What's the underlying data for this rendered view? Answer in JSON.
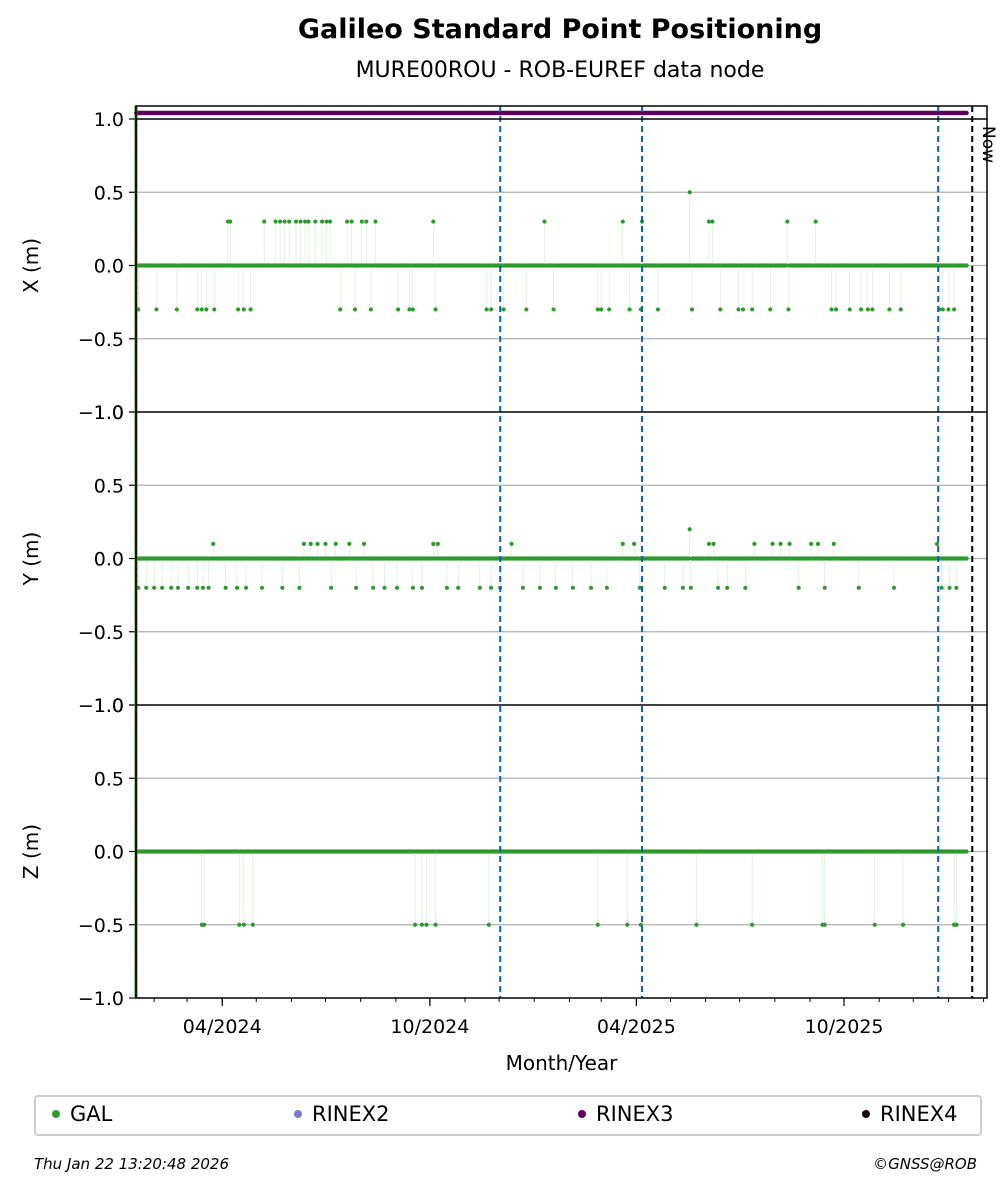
{
  "header": {
    "title": "Galileo Standard Point Positioning",
    "subtitle": "MURE00ROU - ROB-EUREF data node"
  },
  "footer": {
    "timestamp": "Thu Jan 22 13:20:48 2026",
    "copyright": "©GNSS@ROB"
  },
  "legend": [
    {
      "label": "GAL",
      "color": "#2e9a2e"
    },
    {
      "label": "RINEX2",
      "color": "#7b7bc8"
    },
    {
      "label": "RINEX3",
      "color": "#5e005e"
    },
    {
      "label": "RINEX4",
      "color": "#1a0010"
    }
  ],
  "chart_data": {
    "type": "scatter",
    "xlabel": "Month/Year",
    "x_ticks": [
      "04/2024",
      "10/2024",
      "04/2025",
      "10/2025"
    ],
    "now_label": "Now",
    "ylim": [
      -1.0,
      1.0
    ],
    "y_ticks": [
      "1.0",
      "0.5",
      "0.0",
      "−0.5",
      "−1.0"
    ],
    "grid": true,
    "x_range": [
      "2024-01-16",
      "2026-02-04"
    ],
    "vertical_markers": {
      "red_line": "2024-01-16",
      "blue_dashed": [
        "2024-12-02",
        "2025-04-06",
        "2025-12-23"
      ],
      "now": "2026-01-22"
    },
    "rinex3_band": {
      "start": "2024-01-16",
      "end": "2026-01-17"
    },
    "gal_series_range": {
      "start": "2024-01-17",
      "end": "2026-01-17"
    },
    "panels": [
      {
        "ylabel": "X (m)",
        "baseline": 0.0,
        "outliers": [
          {
            "date": "2024-01-18",
            "value": -0.3
          },
          {
            "date": "2024-02-03",
            "value": -0.3
          },
          {
            "date": "2024-02-21",
            "value": -0.3
          },
          {
            "date": "2024-03-10",
            "value": -0.3
          },
          {
            "date": "2024-03-14",
            "value": -0.3
          },
          {
            "date": "2024-03-18",
            "value": -0.3
          },
          {
            "date": "2024-03-25",
            "value": -0.3
          },
          {
            "date": "2024-04-06",
            "value": 0.3
          },
          {
            "date": "2024-04-08",
            "value": 0.3
          },
          {
            "date": "2024-04-15",
            "value": -0.3
          },
          {
            "date": "2024-04-20",
            "value": -0.3
          },
          {
            "date": "2024-04-26",
            "value": -0.3
          },
          {
            "date": "2024-05-08",
            "value": 0.3
          },
          {
            "date": "2024-05-18",
            "value": 0.3
          },
          {
            "date": "2024-05-22",
            "value": 0.3
          },
          {
            "date": "2024-05-26",
            "value": 0.3
          },
          {
            "date": "2024-05-30",
            "value": 0.3
          },
          {
            "date": "2024-06-05",
            "value": 0.3
          },
          {
            "date": "2024-06-09",
            "value": 0.3
          },
          {
            "date": "2024-06-13",
            "value": 0.3
          },
          {
            "date": "2024-06-16",
            "value": 0.3
          },
          {
            "date": "2024-06-22",
            "value": 0.3
          },
          {
            "date": "2024-06-28",
            "value": 0.3
          },
          {
            "date": "2024-07-02",
            "value": 0.3
          },
          {
            "date": "2024-07-05",
            "value": 0.3
          },
          {
            "date": "2024-07-14",
            "value": -0.3
          },
          {
            "date": "2024-07-20",
            "value": 0.3
          },
          {
            "date": "2024-07-24",
            "value": 0.3
          },
          {
            "date": "2024-07-27",
            "value": -0.3
          },
          {
            "date": "2024-08-02",
            "value": 0.3
          },
          {
            "date": "2024-08-06",
            "value": 0.3
          },
          {
            "date": "2024-08-10",
            "value": -0.3
          },
          {
            "date": "2024-08-14",
            "value": 0.3
          },
          {
            "date": "2024-09-03",
            "value": -0.3
          },
          {
            "date": "2024-09-13",
            "value": -0.3
          },
          {
            "date": "2024-09-16",
            "value": -0.3
          },
          {
            "date": "2024-10-04",
            "value": 0.3
          },
          {
            "date": "2024-10-06",
            "value": -0.3
          },
          {
            "date": "2024-11-20",
            "value": -0.3
          },
          {
            "date": "2024-11-24",
            "value": -0.3
          },
          {
            "date": "2024-12-05",
            "value": -0.3
          },
          {
            "date": "2024-12-25",
            "value": -0.3
          },
          {
            "date": "2025-01-10",
            "value": 0.3
          },
          {
            "date": "2025-01-18",
            "value": -0.3
          },
          {
            "date": "2025-02-26",
            "value": -0.3
          },
          {
            "date": "2025-03-01",
            "value": -0.3
          },
          {
            "date": "2025-03-08",
            "value": -0.3
          },
          {
            "date": "2025-03-20",
            "value": 0.3
          },
          {
            "date": "2025-03-26",
            "value": -0.3
          },
          {
            "date": "2025-04-06",
            "value": 0.3
          },
          {
            "date": "2025-04-05",
            "value": -0.3
          },
          {
            "date": "2025-04-20",
            "value": -0.3
          },
          {
            "date": "2025-05-18",
            "value": 0.5
          },
          {
            "date": "2025-05-20",
            "value": -0.3
          },
          {
            "date": "2025-06-04",
            "value": 0.3
          },
          {
            "date": "2025-06-07",
            "value": 0.3
          },
          {
            "date": "2025-06-14",
            "value": -0.3
          },
          {
            "date": "2025-06-30",
            "value": -0.3
          },
          {
            "date": "2025-07-04",
            "value": -0.3
          },
          {
            "date": "2025-07-12",
            "value": -0.3
          },
          {
            "date": "2025-07-28",
            "value": -0.3
          },
          {
            "date": "2025-08-12",
            "value": 0.3
          },
          {
            "date": "2025-08-13",
            "value": -0.3
          },
          {
            "date": "2025-09-06",
            "value": 0.3
          },
          {
            "date": "2025-09-20",
            "value": -0.3
          },
          {
            "date": "2025-09-24",
            "value": -0.3
          },
          {
            "date": "2025-10-06",
            "value": -0.3
          },
          {
            "date": "2025-10-16",
            "value": -0.3
          },
          {
            "date": "2025-10-22",
            "value": -0.3
          },
          {
            "date": "2025-10-26",
            "value": -0.3
          },
          {
            "date": "2025-11-10",
            "value": -0.3
          },
          {
            "date": "2025-11-20",
            "value": -0.3
          },
          {
            "date": "2025-12-24",
            "value": -0.3
          },
          {
            "date": "2025-12-27",
            "value": -0.3
          },
          {
            "date": "2026-01-01",
            "value": -0.3
          },
          {
            "date": "2026-01-06",
            "value": -0.3
          }
        ]
      },
      {
        "ylabel": "Y (m)",
        "baseline": 0.0,
        "outliers": [
          {
            "date": "2024-01-18",
            "value": -0.2
          },
          {
            "date": "2024-01-25",
            "value": -0.2
          },
          {
            "date": "2024-02-01",
            "value": -0.2
          },
          {
            "date": "2024-02-08",
            "value": -0.2
          },
          {
            "date": "2024-02-16",
            "value": -0.2
          },
          {
            "date": "2024-02-22",
            "value": -0.2
          },
          {
            "date": "2024-03-02",
            "value": -0.2
          },
          {
            "date": "2024-03-10",
            "value": -0.2
          },
          {
            "date": "2024-03-15",
            "value": -0.2
          },
          {
            "date": "2024-03-20",
            "value": -0.2
          },
          {
            "date": "2024-03-24",
            "value": 0.1
          },
          {
            "date": "2024-04-04",
            "value": -0.2
          },
          {
            "date": "2024-04-14",
            "value": -0.2
          },
          {
            "date": "2024-04-22",
            "value": -0.2
          },
          {
            "date": "2024-05-06",
            "value": -0.2
          },
          {
            "date": "2024-05-24",
            "value": -0.2
          },
          {
            "date": "2024-06-08",
            "value": -0.2
          },
          {
            "date": "2024-06-12",
            "value": 0.1
          },
          {
            "date": "2024-06-18",
            "value": 0.1
          },
          {
            "date": "2024-06-24",
            "value": 0.1
          },
          {
            "date": "2024-07-01",
            "value": 0.1
          },
          {
            "date": "2024-07-06",
            "value": -0.2
          },
          {
            "date": "2024-07-10",
            "value": 0.1
          },
          {
            "date": "2024-07-22",
            "value": 0.1
          },
          {
            "date": "2024-07-28",
            "value": -0.2
          },
          {
            "date": "2024-08-04",
            "value": 0.1
          },
          {
            "date": "2024-08-12",
            "value": -0.2
          },
          {
            "date": "2024-08-22",
            "value": -0.2
          },
          {
            "date": "2024-09-02",
            "value": -0.2
          },
          {
            "date": "2024-09-16",
            "value": -0.2
          },
          {
            "date": "2024-09-24",
            "value": -0.2
          },
          {
            "date": "2024-10-04",
            "value": 0.1
          },
          {
            "date": "2024-10-08",
            "value": 0.1
          },
          {
            "date": "2024-10-16",
            "value": -0.2
          },
          {
            "date": "2024-10-26",
            "value": -0.2
          },
          {
            "date": "2024-11-14",
            "value": -0.2
          },
          {
            "date": "2024-11-24",
            "value": -0.2
          },
          {
            "date": "2024-12-02",
            "value": -0.2
          },
          {
            "date": "2024-12-12",
            "value": 0.1
          },
          {
            "date": "2024-12-22",
            "value": -0.2
          },
          {
            "date": "2025-01-06",
            "value": -0.2
          },
          {
            "date": "2025-01-20",
            "value": -0.2
          },
          {
            "date": "2025-02-04",
            "value": -0.2
          },
          {
            "date": "2025-02-20",
            "value": -0.2
          },
          {
            "date": "2025-03-06",
            "value": -0.2
          },
          {
            "date": "2025-03-20",
            "value": 0.1
          },
          {
            "date": "2025-03-30",
            "value": 0.1
          },
          {
            "date": "2025-04-04",
            "value": -0.2
          },
          {
            "date": "2025-04-26",
            "value": -0.2
          },
          {
            "date": "2025-05-12",
            "value": -0.2
          },
          {
            "date": "2025-05-18",
            "value": 0.2
          },
          {
            "date": "2025-05-19",
            "value": -0.2
          },
          {
            "date": "2025-06-04",
            "value": 0.1
          },
          {
            "date": "2025-06-08",
            "value": 0.1
          },
          {
            "date": "2025-06-12",
            "value": -0.2
          },
          {
            "date": "2025-06-20",
            "value": -0.2
          },
          {
            "date": "2025-07-06",
            "value": -0.2
          },
          {
            "date": "2025-07-14",
            "value": 0.1
          },
          {
            "date": "2025-07-30",
            "value": 0.1
          },
          {
            "date": "2025-08-06",
            "value": 0.1
          },
          {
            "date": "2025-08-14",
            "value": 0.1
          },
          {
            "date": "2025-08-22",
            "value": -0.2
          },
          {
            "date": "2025-09-02",
            "value": 0.1
          },
          {
            "date": "2025-09-08",
            "value": 0.1
          },
          {
            "date": "2025-09-14",
            "value": -0.2
          },
          {
            "date": "2025-09-22",
            "value": 0.1
          },
          {
            "date": "2025-10-14",
            "value": -0.2
          },
          {
            "date": "2025-11-14",
            "value": -0.2
          },
          {
            "date": "2025-12-22",
            "value": 0.1
          },
          {
            "date": "2025-12-26",
            "value": -0.2
          },
          {
            "date": "2026-01-02",
            "value": -0.2
          },
          {
            "date": "2026-01-08",
            "value": -0.2
          }
        ]
      },
      {
        "ylabel": "Z (m)",
        "baseline": 0.0,
        "outliers": [
          {
            "date": "2024-03-14",
            "value": -0.5
          },
          {
            "date": "2024-03-16",
            "value": -0.5
          },
          {
            "date": "2024-04-16",
            "value": -0.5
          },
          {
            "date": "2024-04-20",
            "value": -0.5
          },
          {
            "date": "2024-04-28",
            "value": -0.5
          },
          {
            "date": "2024-09-18",
            "value": -0.5
          },
          {
            "date": "2024-09-24",
            "value": -0.5
          },
          {
            "date": "2024-09-28",
            "value": -0.5
          },
          {
            "date": "2024-10-06",
            "value": -0.5
          },
          {
            "date": "2024-11-22",
            "value": -0.5
          },
          {
            "date": "2025-02-26",
            "value": -0.5
          },
          {
            "date": "2025-03-24",
            "value": -0.5
          },
          {
            "date": "2025-04-05",
            "value": -0.5
          },
          {
            "date": "2025-05-24",
            "value": -0.5
          },
          {
            "date": "2025-07-12",
            "value": -0.5
          },
          {
            "date": "2025-09-12",
            "value": -0.5
          },
          {
            "date": "2025-09-14",
            "value": -0.5
          },
          {
            "date": "2025-10-28",
            "value": -0.5
          },
          {
            "date": "2025-11-22",
            "value": -0.5
          },
          {
            "date": "2026-01-06",
            "value": -0.5
          },
          {
            "date": "2026-01-08",
            "value": -0.5
          }
        ]
      }
    ]
  }
}
